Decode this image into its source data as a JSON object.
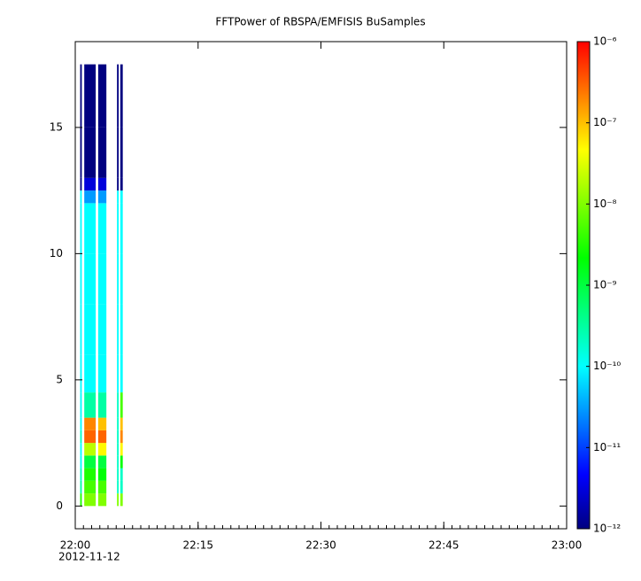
{
  "chart_data": {
    "type": "spectrogram",
    "title": "FFTPower of RBSPA/EMFISIS  BuSamples",
    "xlim": [
      "22:00",
      "23:00"
    ],
    "xticks": [
      "22:00",
      "22:15",
      "22:30",
      "22:45",
      "23:00"
    ],
    "x_date_label": "2012-11-12",
    "ylim": [
      -0.9,
      18.4
    ],
    "yticks": [
      0,
      5,
      10,
      15
    ],
    "y_bin_edges": [
      0,
      0.5,
      1,
      1.5,
      2,
      2.5,
      3,
      3.5,
      4.5,
      6,
      8,
      10,
      12,
      12.5,
      13,
      15,
      17.5
    ],
    "columns": [
      {
        "start": "22:00:36",
        "end": "22:00:48",
        "values": [
          3e-09,
          3e-10,
          2e-10,
          1e-10,
          1e-10,
          2e-10,
          1e-10,
          1e-10,
          1e-10,
          1e-10,
          1e-10,
          1e-10,
          1e-10,
          1e-12,
          1e-12,
          1e-12
        ]
      },
      {
        "start": "22:01:06",
        "end": "22:02:30",
        "values": [
          1e-08,
          5e-09,
          3e-09,
          1e-09,
          2e-08,
          3e-07,
          2e-07,
          3e-10,
          1e-10,
          1e-10,
          1e-10,
          1e-10,
          3e-11,
          3e-12,
          1e-12,
          1e-12
        ]
      },
      {
        "start": "22:02:48",
        "end": "22:03:48",
        "values": [
          1e-08,
          5e-09,
          2e-09,
          1e-09,
          5e-08,
          3e-07,
          1e-07,
          3e-10,
          1e-10,
          1e-10,
          1e-10,
          1e-10,
          3e-11,
          3e-12,
          1e-12,
          1e-12
        ]
      },
      {
        "start": "22:05:06",
        "end": "22:05:18",
        "values": [
          1e-08,
          2e-10,
          2e-10,
          2e-10,
          2e-10,
          2e-10,
          2e-10,
          2e-10,
          1e-10,
          1e-10,
          1e-10,
          1e-10,
          1e-10,
          1e-12,
          1e-12,
          1e-12
        ]
      },
      {
        "start": "22:05:30",
        "end": "22:05:48",
        "values": [
          1e-08,
          2e-10,
          2e-10,
          2e-09,
          5e-08,
          2e-07,
          1e-07,
          5e-09,
          1e-10,
          1e-10,
          1e-10,
          1e-10,
          1e-10,
          1e-12,
          1e-12,
          1e-12
        ]
      }
    ],
    "colorbar": {
      "log": true,
      "lim": [
        1e-12,
        1e-06
      ],
      "ticks": [
        {
          "value": 1e-12,
          "label": "10⁻¹²"
        },
        {
          "value": 1e-11,
          "label": "10⁻¹¹"
        },
        {
          "value": 1e-10,
          "label": "10⁻¹⁰"
        },
        {
          "value": 1e-09,
          "label": "10⁻⁹"
        },
        {
          "value": 1e-08,
          "label": "10⁻⁸"
        },
        {
          "value": 1e-07,
          "label": "10⁻⁷"
        },
        {
          "value": 1e-06,
          "label": "10⁻⁶"
        }
      ],
      "colormap": [
        "#000080",
        "#0000ff",
        "#0080ff",
        "#00ffff",
        "#00ff80",
        "#00ff00",
        "#80ff00",
        "#ffff00",
        "#ff8000",
        "#ff0000"
      ]
    }
  }
}
